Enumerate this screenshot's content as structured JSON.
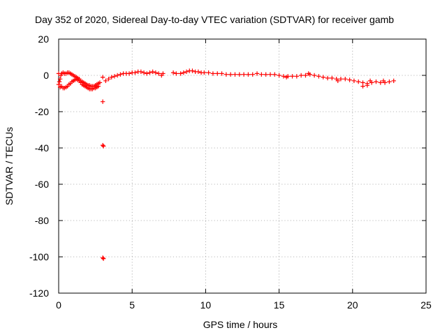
{
  "chart_data": {
    "type": "scatter",
    "title": "Day 352 of 2020, Sidereal Day-to-day VTEC variation (SDTVAR) for receiver gamb",
    "xlabel": "GPS time / hours",
    "ylabel": "SDTVAR / TECUs",
    "xlim": [
      0,
      25
    ],
    "ylim": [
      -120,
      20
    ],
    "xticks": [
      0,
      5,
      10,
      15,
      20,
      25
    ],
    "yticks": [
      20,
      0,
      -20,
      -40,
      -60,
      -80,
      -100,
      -120
    ],
    "grid": true,
    "marker": "+",
    "color": "#ff0000",
    "series": [
      {
        "name": "SDTVAR",
        "points": [
          [
            0.0,
            1
          ],
          [
            0.1,
            -2
          ],
          [
            0.15,
            0
          ],
          [
            0.2,
            1
          ],
          [
            0.3,
            1.5
          ],
          [
            0.4,
            1
          ],
          [
            0.5,
            1
          ],
          [
            0.6,
            1.5
          ],
          [
            0.7,
            1.5
          ],
          [
            0.8,
            1
          ],
          [
            0.9,
            0.5
          ],
          [
            1.0,
            0
          ],
          [
            1.1,
            -0.5
          ],
          [
            1.2,
            -1
          ],
          [
            1.3,
            -1.5
          ],
          [
            1.4,
            -2
          ],
          [
            1.5,
            -3
          ],
          [
            1.6,
            -3.5
          ],
          [
            1.7,
            -4
          ],
          [
            1.8,
            -4.5
          ],
          [
            1.9,
            -5
          ],
          [
            2.0,
            -5.5
          ],
          [
            2.1,
            -5.5
          ],
          [
            2.2,
            -6
          ],
          [
            2.3,
            -6
          ],
          [
            2.4,
            -6
          ],
          [
            2.5,
            -5.5
          ],
          [
            2.6,
            -5
          ],
          [
            2.7,
            -4.5
          ],
          [
            2.8,
            -4
          ],
          [
            0.2,
            -6
          ],
          [
            0.3,
            -7
          ],
          [
            0.4,
            -7
          ],
          [
            0.5,
            -6.5
          ],
          [
            0.6,
            -6
          ],
          [
            0.7,
            -5
          ],
          [
            0.8,
            -4.5
          ],
          [
            0.9,
            -3.5
          ],
          [
            1.0,
            -3
          ],
          [
            1.1,
            -2.5
          ],
          [
            1.2,
            -2
          ],
          [
            1.3,
            -2.5
          ],
          [
            1.4,
            -3
          ],
          [
            1.5,
            -4
          ],
          [
            1.6,
            -5
          ],
          [
            1.7,
            -5.5
          ],
          [
            1.8,
            -6
          ],
          [
            1.9,
            -6.5
          ],
          [
            2.0,
            -7
          ],
          [
            2.1,
            -7.5
          ],
          [
            2.2,
            -7.5
          ],
          [
            2.3,
            -7.5
          ],
          [
            2.4,
            -7
          ],
          [
            2.5,
            -7
          ],
          [
            2.6,
            -6.5
          ],
          [
            2.7,
            -6
          ],
          [
            0.0,
            -5
          ],
          [
            0.1,
            -6.5
          ],
          [
            0.05,
            -3.5
          ],
          [
            3.0,
            -1
          ],
          [
            3.0,
            -14.5
          ],
          [
            3.0,
            -38.5
          ],
          [
            3.05,
            -39
          ],
          [
            3.0,
            -100.5
          ],
          [
            3.05,
            -101
          ],
          [
            3.2,
            -3
          ],
          [
            3.4,
            -2
          ],
          [
            3.6,
            -1
          ],
          [
            3.8,
            -0.5
          ],
          [
            4.0,
            0
          ],
          [
            4.2,
            0.5
          ],
          [
            4.4,
            1
          ],
          [
            4.6,
            1
          ],
          [
            4.8,
            1
          ],
          [
            5.0,
            1.5
          ],
          [
            5.2,
            1.5
          ],
          [
            5.4,
            2
          ],
          [
            5.6,
            2
          ],
          [
            5.8,
            1.5
          ],
          [
            6.0,
            1
          ],
          [
            6.2,
            1.5
          ],
          [
            6.4,
            2
          ],
          [
            6.6,
            1.5
          ],
          [
            6.8,
            1
          ],
          [
            7.0,
            0
          ],
          [
            7.1,
            1
          ],
          [
            7.8,
            1.5
          ],
          [
            8.0,
            1
          ],
          [
            8.3,
            1
          ],
          [
            8.5,
            1.5
          ],
          [
            8.7,
            2
          ],
          [
            8.9,
            2.5
          ],
          [
            9.1,
            2.5
          ],
          [
            9.3,
            2
          ],
          [
            9.5,
            2
          ],
          [
            9.7,
            1.5
          ],
          [
            9.9,
            1.5
          ],
          [
            10.2,
            1.5
          ],
          [
            10.5,
            1
          ],
          [
            10.8,
            1
          ],
          [
            11.1,
            1
          ],
          [
            11.4,
            0.5
          ],
          [
            11.7,
            0.5
          ],
          [
            12.0,
            0.5
          ],
          [
            12.3,
            0.5
          ],
          [
            12.6,
            0.5
          ],
          [
            12.9,
            0.5
          ],
          [
            13.2,
            0.5
          ],
          [
            13.5,
            1
          ],
          [
            13.8,
            0.5
          ],
          [
            14.1,
            0.5
          ],
          [
            14.4,
            0.5
          ],
          [
            14.7,
            0.5
          ],
          [
            15.0,
            0
          ],
          [
            15.3,
            -0.5
          ],
          [
            15.6,
            -0.5
          ],
          [
            15.9,
            -0.5
          ],
          [
            16.2,
            -0.5
          ],
          [
            16.5,
            0
          ],
          [
            16.8,
            0
          ],
          [
            17.1,
            0.5
          ],
          [
            17.4,
            0
          ],
          [
            17.7,
            -0.5
          ],
          [
            18.0,
            -1
          ],
          [
            18.3,
            -1.5
          ],
          [
            18.6,
            -1.5
          ],
          [
            18.9,
            -2
          ],
          [
            19.2,
            -2
          ],
          [
            19.5,
            -2
          ],
          [
            19.8,
            -2.5
          ],
          [
            20.1,
            -3
          ],
          [
            20.4,
            -3.5
          ],
          [
            20.7,
            -4
          ],
          [
            21.0,
            -4.5
          ],
          [
            21.3,
            -4
          ],
          [
            21.6,
            -3.5
          ],
          [
            21.9,
            -4
          ],
          [
            22.2,
            -4
          ],
          [
            22.5,
            -3.5
          ],
          [
            22.8,
            -3
          ],
          [
            20.7,
            -6
          ],
          [
            21.0,
            -5.5
          ],
          [
            21.2,
            -3
          ],
          [
            22.1,
            -3
          ],
          [
            19.0,
            -3
          ],
          [
            17.0,
            1
          ],
          [
            15.5,
            -1
          ]
        ]
      }
    ]
  }
}
